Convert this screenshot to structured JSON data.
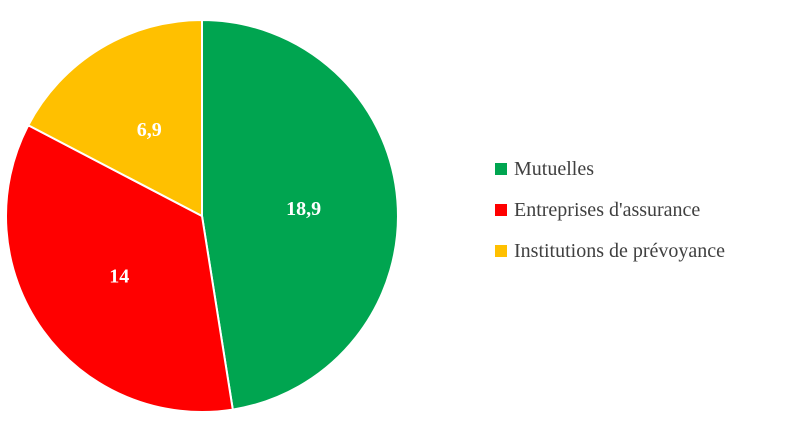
{
  "chart_data": {
    "type": "pie",
    "title": "",
    "start_angle_deg": 0,
    "direction": "clockwise",
    "legend_position": "right",
    "series": [
      {
        "id": "mutuelles",
        "label": "Mutuelles",
        "value": 18.9,
        "display": "18,9",
        "color": "#00A550"
      },
      {
        "id": "entreprises-assurance",
        "label": "Entreprises d'assurance",
        "value": 14,
        "display": "14",
        "color": "#FF0000"
      },
      {
        "id": "institutions-prevoyance",
        "label": "Institutions de prévoyance",
        "value": 6.9,
        "display": "6,9",
        "color": "#FFC000"
      }
    ],
    "data_label_color": "#ffffff",
    "legend_text_color": "#404040"
  }
}
